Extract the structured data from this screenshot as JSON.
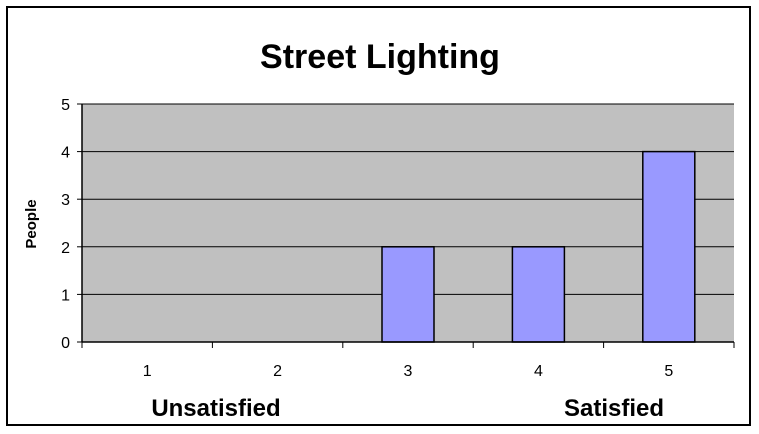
{
  "chart_data": {
    "type": "bar",
    "title": "Street Lighting",
    "xlabel": "",
    "ylabel": "People",
    "categories": [
      "1",
      "2",
      "3",
      "4",
      "5"
    ],
    "values": [
      0,
      0,
      2,
      2,
      4
    ],
    "ylim": [
      0,
      5
    ],
    "yticks": [
      "0",
      "1",
      "2",
      "3",
      "4",
      "5"
    ],
    "grid": true,
    "legend": "none",
    "annotations": {
      "low_end": "Unsatisfied",
      "high_end": "Satisfied"
    },
    "colors": {
      "plot_bg": "#c0c0c0",
      "bar_fill": "#9999ff",
      "bar_stroke": "#000000"
    }
  }
}
